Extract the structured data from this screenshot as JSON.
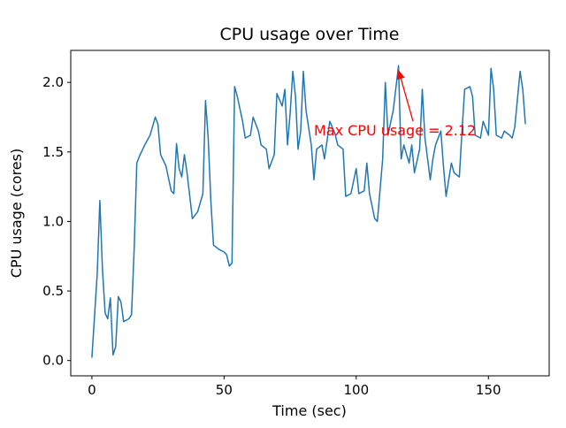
{
  "chart_data": {
    "type": "line",
    "title": "CPU usage over Time",
    "xlabel": "Time (sec)",
    "ylabel": "CPU usage (cores)",
    "line_color": "#1f77b4",
    "background": "#ffffff",
    "grid": false,
    "legend": null,
    "xlim": [
      -8,
      173
    ],
    "ylim": [
      -0.11,
      2.23
    ],
    "xticks": [
      "0",
      "50",
      "100",
      "150"
    ],
    "yticks": [
      "0.0",
      "0.5",
      "1.0",
      "1.5",
      "2.0"
    ],
    "x": [
      0,
      2,
      3,
      4,
      5,
      6,
      7,
      8,
      9,
      10,
      11,
      12,
      14,
      15,
      16,
      17,
      18,
      20,
      22,
      24,
      25,
      26,
      28,
      30,
      31,
      32,
      33,
      34,
      35,
      36,
      38,
      40,
      42,
      43,
      44,
      45,
      46,
      48,
      50,
      51,
      52,
      53,
      54,
      55,
      57,
      58,
      60,
      61,
      63,
      64,
      66,
      67,
      69,
      70,
      72,
      73,
      74,
      75,
      76,
      77,
      78,
      79,
      80,
      81,
      83,
      84,
      85,
      87,
      88,
      90,
      92,
      93,
      95,
      96,
      98,
      100,
      101,
      103,
      104,
      105,
      107,
      108,
      110,
      111,
      112,
      114,
      116,
      117,
      118,
      120,
      121,
      122,
      124,
      125,
      126,
      128,
      129,
      130,
      132,
      133,
      134,
      136,
      137,
      139,
      140,
      141,
      143,
      144,
      145,
      147,
      148,
      150,
      151,
      152,
      153,
      155,
      156,
      158,
      159,
      160,
      162,
      163,
      164
    ],
    "y": [
      0.02,
      0.62,
      1.15,
      0.65,
      0.34,
      0.3,
      0.45,
      0.04,
      0.1,
      0.46,
      0.42,
      0.28,
      0.3,
      0.33,
      0.8,
      1.42,
      1.47,
      1.55,
      1.62,
      1.75,
      1.7,
      1.48,
      1.4,
      1.22,
      1.2,
      1.56,
      1.38,
      1.32,
      1.48,
      1.35,
      1.02,
      1.07,
      1.2,
      1.87,
      1.6,
      1.15,
      0.83,
      0.8,
      0.78,
      0.76,
      0.68,
      0.7,
      1.97,
      1.9,
      1.72,
      1.6,
      1.62,
      1.75,
      1.65,
      1.55,
      1.52,
      1.38,
      1.48,
      1.92,
      1.83,
      1.95,
      1.55,
      1.78,
      2.08,
      1.9,
      1.52,
      1.65,
      2.08,
      1.8,
      1.55,
      1.3,
      1.52,
      1.55,
      1.45,
      1.72,
      1.63,
      1.55,
      1.52,
      1.18,
      1.2,
      1.38,
      1.2,
      1.22,
      1.42,
      1.2,
      1.02,
      1.0,
      1.45,
      2.0,
      1.62,
      1.8,
      2.12,
      1.45,
      1.55,
      1.42,
      1.55,
      1.35,
      1.52,
      1.95,
      1.6,
      1.3,
      1.45,
      1.55,
      1.65,
      1.4,
      1.18,
      1.42,
      1.35,
      1.32,
      1.65,
      1.95,
      1.97,
      1.9,
      1.62,
      1.6,
      1.72,
      1.62,
      2.1,
      1.95,
      1.62,
      1.6,
      1.65,
      1.62,
      1.6,
      1.68,
      2.08,
      1.95,
      1.7
    ],
    "annotation": {
      "text": "Max CPU usage = 2.12",
      "color": "#ff0000",
      "xy": [
        116,
        2.12
      ],
      "xytext": [
        84,
        1.62
      ]
    }
  }
}
